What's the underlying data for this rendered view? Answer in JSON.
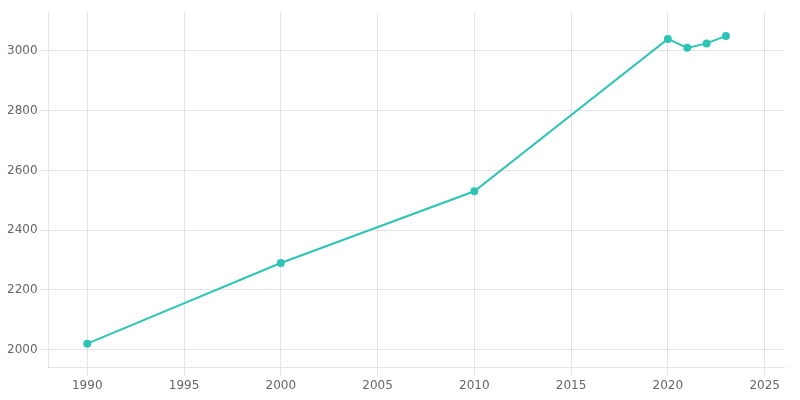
{
  "chart_data": {
    "type": "line",
    "x": [
      1990,
      2000,
      2010,
      2020,
      2021,
      2022,
      2023
    ],
    "values": [
      2020,
      2290,
      2530,
      3040,
      3010,
      3025,
      3050
    ],
    "color": "#2EC4B6",
    "marker": "o",
    "xlim": [
      1988,
      2026
    ],
    "ylim": [
      1940,
      3130
    ],
    "xticks": [
      1990,
      1995,
      2000,
      2005,
      2010,
      2015,
      2020,
      2025
    ],
    "yticks": [
      2000,
      2200,
      2400,
      2600,
      2800,
      3000
    ],
    "grid": true
  }
}
